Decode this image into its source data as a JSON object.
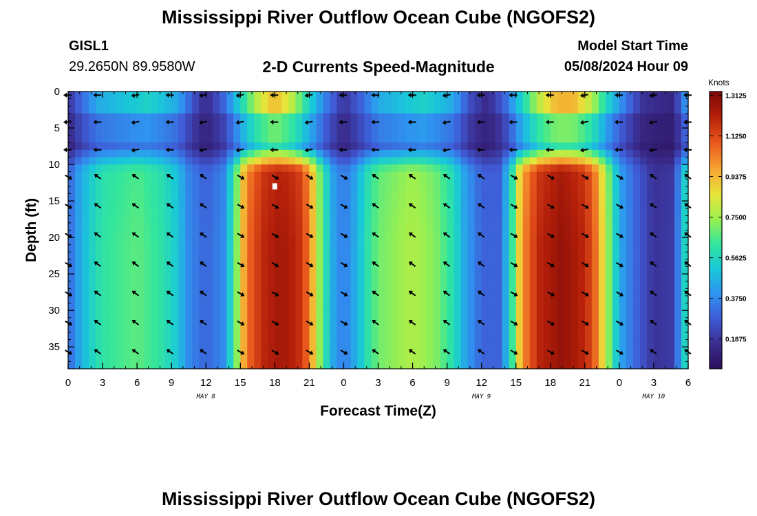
{
  "page": {
    "title": "Mississippi River Outflow Ocean Cube (NGOFS2)",
    "footer_title": "Mississippi River Outflow Ocean Cube (NGOFS2)"
  },
  "station": {
    "id": "GISL1",
    "coords": "29.2650N  89.9580W"
  },
  "model": {
    "label": "Model Start Time",
    "time": "05/08/2024 Hour 09"
  },
  "chart_data": {
    "type": "heatmap",
    "title": "2-D Currents Speed-Magnitude",
    "xlabel": "Forecast Time(Z)",
    "ylabel": "Depth (ft)",
    "x_range_hours": [
      0,
      54
    ],
    "y_range_ft": [
      0,
      38
    ],
    "x_ticks": [
      0,
      3,
      6,
      9,
      12,
      15,
      18,
      21,
      24,
      27,
      30,
      33,
      36,
      39,
      42,
      45,
      48,
      51,
      54
    ],
    "x_tick_labels": [
      "0",
      "3",
      "6",
      "9",
      "12",
      "15",
      "18",
      "21",
      "0",
      "3",
      "6",
      "9",
      "12",
      "15",
      "18",
      "21",
      "0",
      "3",
      "6"
    ],
    "y_ticks": [
      0,
      5,
      10,
      15,
      20,
      25,
      30,
      35
    ],
    "y_tick_labels": [
      "0",
      "5",
      "10",
      "15",
      "20",
      "25",
      "30",
      "35"
    ],
    "day_labels": [
      {
        "text": "MAY 8",
        "hour": 12
      },
      {
        "text": "MAY 9",
        "hour": 36
      },
      {
        "text": "MAY 10",
        "hour": 51
      }
    ],
    "colorbar": {
      "unit": "Knots",
      "min": 0.05,
      "max": 1.33,
      "ticks": [
        1.3125,
        1.125,
        0.9375,
        0.75,
        0.5625,
        0.375,
        0.1875
      ],
      "tick_labels": [
        "1.3125",
        "1.1250",
        "0.9375",
        "0.7500",
        "0.5625",
        "0.3750",
        "0.1875"
      ]
    },
    "surface_speed_by_hour": [
      [
        0,
        0.18
      ],
      [
        1,
        0.3
      ],
      [
        2.5,
        0.45
      ],
      [
        7,
        0.55
      ],
      [
        9.5,
        0.45
      ],
      [
        11,
        0.25
      ],
      [
        12,
        0.15
      ],
      [
        13.5,
        0.3
      ],
      [
        15,
        0.55
      ],
      [
        16.5,
        0.8
      ],
      [
        18,
        0.95
      ],
      [
        19.5,
        0.8
      ],
      [
        21,
        0.55
      ],
      [
        22.5,
        0.35
      ],
      [
        24,
        0.18
      ],
      [
        25.5,
        0.3
      ],
      [
        27,
        0.45
      ],
      [
        31,
        0.55
      ],
      [
        33.5,
        0.45
      ],
      [
        35,
        0.25
      ],
      [
        36.5,
        0.15
      ],
      [
        38,
        0.3
      ],
      [
        39.5,
        0.55
      ],
      [
        41,
        0.8
      ],
      [
        42.5,
        0.95
      ],
      [
        44,
        0.95
      ],
      [
        45.5,
        0.8
      ],
      [
        47,
        0.55
      ],
      [
        48.5,
        0.35
      ],
      [
        50,
        0.18
      ],
      [
        52.5,
        0.14
      ],
      [
        53.5,
        0.3
      ],
      [
        54,
        0.5
      ]
    ],
    "deep_speed_by_hour": [
      [
        0,
        0.3
      ],
      [
        1,
        0.45
      ],
      [
        2,
        0.55
      ],
      [
        3,
        0.62
      ],
      [
        6,
        0.68
      ],
      [
        8,
        0.62
      ],
      [
        9.5,
        0.52
      ],
      [
        10.5,
        0.38
      ],
      [
        12,
        0.3
      ],
      [
        13.5,
        0.38
      ],
      [
        14.5,
        0.65
      ],
      [
        15.5,
        1.05
      ],
      [
        17,
        1.2
      ],
      [
        18.5,
        1.25
      ],
      [
        20,
        1.2
      ],
      [
        21,
        1.05
      ],
      [
        22,
        0.7
      ],
      [
        23,
        0.45
      ],
      [
        24,
        0.35
      ],
      [
        25,
        0.45
      ],
      [
        26,
        0.6
      ],
      [
        27,
        0.7
      ],
      [
        30,
        0.78
      ],
      [
        32,
        0.72
      ],
      [
        33.5,
        0.6
      ],
      [
        34.5,
        0.45
      ],
      [
        36,
        0.3
      ],
      [
        37.5,
        0.3
      ],
      [
        38.5,
        0.55
      ],
      [
        39.5,
        1.0
      ],
      [
        41,
        1.2
      ],
      [
        43,
        1.28
      ],
      [
        45,
        1.2
      ],
      [
        46,
        1.05
      ],
      [
        47,
        0.75
      ],
      [
        48,
        0.45
      ],
      [
        49.5,
        0.3
      ],
      [
        51,
        0.18
      ],
      [
        52.5,
        0.2
      ],
      [
        53.5,
        0.45
      ],
      [
        54,
        0.7
      ]
    ],
    "arrow_depths_ft": [
      0.5,
      4.2,
      8,
      11.7,
      15.7,
      19.7,
      23.7,
      27.7,
      31.7,
      35.7
    ],
    "arrow_hours": [
      0,
      2.6,
      5.9,
      8.9,
      11.8,
      15,
      18,
      21,
      24,
      26.8,
      30,
      33,
      36,
      38.8,
      42,
      45,
      48,
      51,
      54
    ],
    "marker_point": {
      "hour": 18,
      "depth_ft": 13
    }
  },
  "colors": {
    "scale": [
      "#2b0f5a",
      "#3a2d8f",
      "#3f5bd6",
      "#2f93f0",
      "#19c8d8",
      "#33e69d",
      "#9bf04f",
      "#e7e43a",
      "#f7a432",
      "#e8551c",
      "#b4200a",
      "#7a0806"
    ]
  }
}
